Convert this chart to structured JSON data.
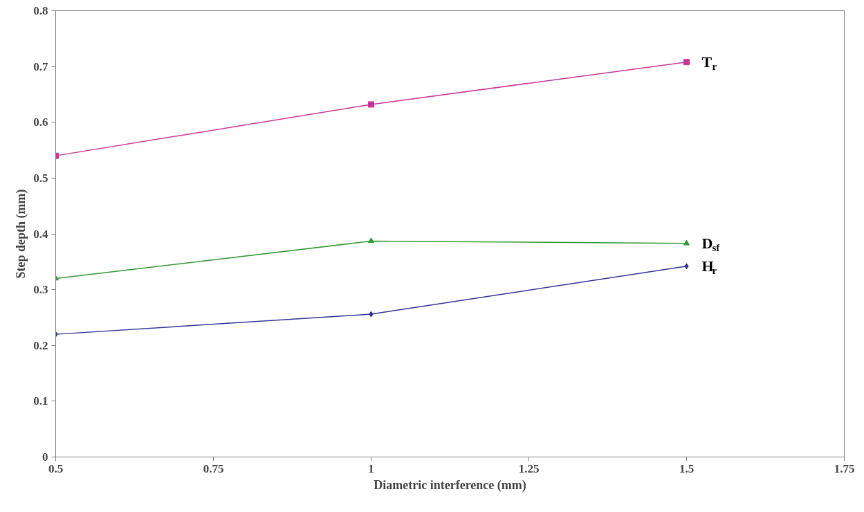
{
  "chart_data": {
    "type": "line",
    "xlabel": "Diametric interference (mm)",
    "ylabel": "Step depth (mm)",
    "x": [
      0.5,
      1,
      1.5
    ],
    "series": [
      {
        "name": "T$_{r}$",
        "color": "#cc3399",
        "marker": "square",
        "values": [
          0.54,
          0.632,
          0.708
        ]
      },
      {
        "name": "D$_{sf}$",
        "color": "#339933",
        "marker": "triangle",
        "values": [
          0.32,
          0.387,
          0.383
        ]
      },
      {
        "name": "H$_{r}$",
        "color": "#333399",
        "marker": "diamond",
        "values": [
          0.22,
          0.256,
          0.342
        ]
      }
    ],
    "xlim": [
      0.5,
      1.75
    ],
    "xticks": [
      0.5,
      0.75,
      1,
      1.25,
      1.5,
      1.75
    ],
    "ylim": [
      0,
      0.8
    ],
    "yticks": [
      0,
      0.1,
      0.2,
      0.3,
      0.4,
      0.5,
      0.6,
      0.7,
      0.8
    ],
    "grid": false,
    "line_style": "solid"
  }
}
